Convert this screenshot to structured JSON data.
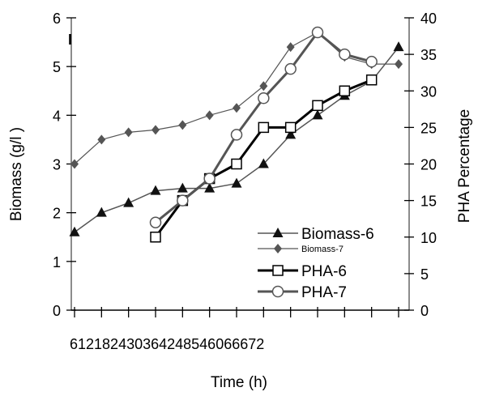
{
  "chart_data": {
    "type": "line",
    "panel_label": "I",
    "xlabel": "Time (h)",
    "ylabel_left": "Biomass (g/l )",
    "ylabel_right": "PHA Percentage",
    "x_tick_labels_text": "612182430364248546066672",
    "x_ticks": [
      0,
      6,
      12,
      18,
      24,
      30,
      36,
      42,
      48,
      54,
      60,
      66,
      72
    ],
    "xlim": [
      0,
      72
    ],
    "y_left_lim": [
      0,
      6
    ],
    "y_left_ticks": [
      "0",
      "1",
      "2",
      "3",
      "4",
      "5",
      "6"
    ],
    "y_right_lim": [
      0,
      40
    ],
    "y_right_ticks": [
      "0",
      "5",
      "10",
      "15",
      "20",
      "25",
      "30",
      "35",
      "40"
    ],
    "legend_position": "lower-right",
    "series": [
      {
        "name": "Biomass-6",
        "axis": "left",
        "color": "#555555",
        "width": 1.5,
        "marker": "triangle",
        "x": [
          0,
          6,
          12,
          18,
          24,
          30,
          36,
          42,
          48,
          54,
          60,
          66,
          72
        ],
        "values": [
          1.6,
          2.0,
          2.2,
          2.45,
          2.5,
          2.5,
          2.6,
          3.0,
          3.6,
          4.0,
          4.4,
          4.7,
          5.4
        ]
      },
      {
        "name": "Biomass-7",
        "axis": "left",
        "color": "#555555",
        "width": 1.2,
        "marker": "diamond",
        "x": [
          0,
          6,
          12,
          18,
          24,
          30,
          36,
          42,
          48,
          54,
          60,
          66,
          72
        ],
        "values": [
          3.0,
          3.5,
          3.65,
          3.7,
          3.8,
          4.0,
          4.15,
          4.6,
          5.4,
          5.7,
          5.2,
          5.05,
          5.05
        ]
      },
      {
        "name": "PHA-6",
        "axis": "right",
        "color": "#000000",
        "width": 3,
        "marker": "square",
        "x": [
          18,
          24,
          30,
          36,
          42,
          48,
          54,
          60,
          66
        ],
        "values": [
          10,
          15,
          18,
          20,
          25,
          25,
          28,
          30,
          31.5
        ]
      },
      {
        "name": "PHA-7",
        "axis": "right",
        "color": "#555555",
        "width": 3,
        "marker": "circle",
        "x": [
          18,
          24,
          30,
          36,
          42,
          48,
          54,
          60,
          66
        ],
        "values": [
          12,
          15,
          18,
          24,
          29,
          33,
          38,
          35,
          34
        ]
      }
    ]
  }
}
